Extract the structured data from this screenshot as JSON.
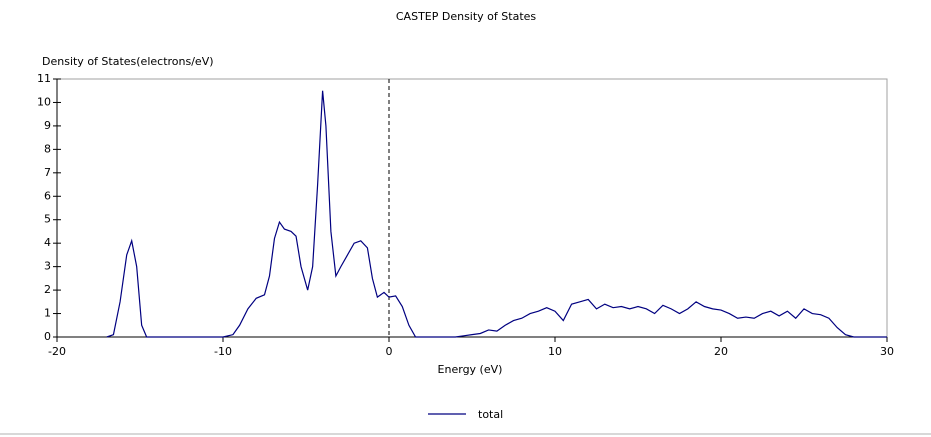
{
  "chart_data": {
    "type": "line",
    "title": "CASTEP Density of States",
    "ylabel": "Density of States(electrons/eV)",
    "xlabel": "Energy (eV)",
    "xlim": [
      -20,
      30
    ],
    "xticks": [
      -20,
      -10,
      0,
      10,
      20,
      30
    ],
    "ylim": [
      0,
      11
    ],
    "yticks": [
      0,
      1,
      2,
      3,
      4,
      5,
      6,
      7,
      8,
      9,
      10,
      11
    ],
    "vline": 0,
    "x": [
      -17,
      -16.6,
      -16.2,
      -15.8,
      -15.5,
      -15.2,
      -14.9,
      -14.6,
      -10,
      -9.4,
      -9,
      -8.5,
      -8,
      -7.5,
      -7.2,
      -6.9,
      -6.6,
      -6.3,
      -5.9,
      -5.6,
      -5.3,
      -4.9,
      -4.6,
      -4.3,
      -4.0,
      -3.8,
      -3.5,
      -3.2,
      -2.9,
      -2.5,
      -2.1,
      -1.7,
      -1.3,
      -1.0,
      -0.7,
      -0.3,
      0,
      0.4,
      0.8,
      1.2,
      1.6,
      4,
      4.5,
      5,
      5.5,
      6,
      6.5,
      7,
      7.5,
      8,
      8.5,
      9,
      9.5,
      10,
      10.5,
      11,
      11.5,
      12,
      12.5,
      13,
      13.5,
      14,
      14.5,
      15,
      15.5,
      16,
      16.5,
      17,
      17.5,
      18,
      18.5,
      19,
      19.5,
      20,
      20.5,
      21,
      21.5,
      22,
      22.5,
      23,
      23.5,
      24,
      24.5,
      25,
      25.5,
      26,
      26.5,
      27,
      27.5,
      28,
      30
    ],
    "series": [
      {
        "name": "total",
        "color": "#000080",
        "values": [
          0,
          0.1,
          1.5,
          3.5,
          4.1,
          3.0,
          0.5,
          0,
          0,
          0.1,
          0.5,
          1.2,
          1.65,
          1.8,
          2.6,
          4.2,
          4.9,
          4.6,
          4.5,
          4.3,
          3.0,
          2.0,
          3.0,
          6.5,
          10.5,
          9.0,
          4.5,
          2.6,
          3.0,
          3.5,
          4.0,
          4.1,
          3.8,
          2.5,
          1.7,
          1.9,
          1.7,
          1.75,
          1.3,
          0.5,
          0,
          0,
          0.05,
          0.1,
          0.15,
          0.3,
          0.25,
          0.5,
          0.7,
          0.8,
          1.0,
          1.1,
          1.25,
          1.1,
          0.7,
          1.4,
          1.5,
          1.6,
          1.2,
          1.4,
          1.25,
          1.3,
          1.2,
          1.3,
          1.2,
          1.0,
          1.35,
          1.2,
          1.0,
          1.2,
          1.5,
          1.3,
          1.2,
          1.15,
          1.0,
          0.8,
          0.85,
          0.8,
          1.0,
          1.1,
          0.9,
          1.1,
          0.8,
          1.2,
          1.0,
          0.95,
          0.8,
          0.4,
          0.1,
          0,
          0
        ]
      }
    ]
  }
}
